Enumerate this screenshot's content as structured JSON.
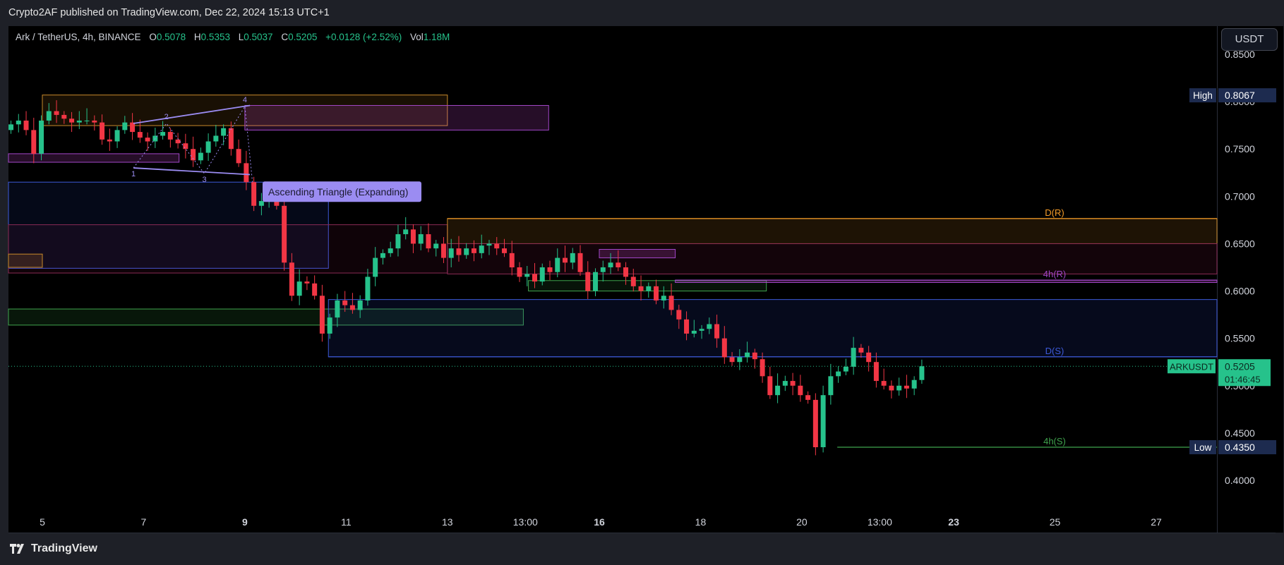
{
  "header": {
    "publish_text": "Crypto2AF published on TradingView.com, Dec 22, 2024 15:13 UTC+1"
  },
  "legend": {
    "symbol": "Ark / TetherUS, 4h, BINANCE",
    "o_label": "O",
    "o_value": "0.5078",
    "h_label": "H",
    "h_value": "0.5353",
    "l_label": "L",
    "l_value": "0.5037",
    "c_label": "C",
    "c_value": "0.5205",
    "change": "+0.0128 (+2.52%)",
    "vol_label": "Vol",
    "vol_value": "1.18M"
  },
  "currency_button": "USDT",
  "footer": {
    "brand": "TradingView"
  },
  "colors": {
    "bull": "#26c28b",
    "bear": "#f23645",
    "bg": "#000000",
    "panel": "#1e2027",
    "axis_text": "#d1d4dc"
  },
  "chart_data": {
    "type": "candlestick",
    "symbol": "ARKUSDT",
    "timeframe": "4h",
    "y_axis": {
      "ticks": [
        "0.8500",
        "0.8000",
        "0.7500",
        "0.7000",
        "0.6500",
        "0.6000",
        "0.5500",
        "0.5000",
        "0.4500",
        "0.4000"
      ],
      "range": [
        0.37,
        0.88
      ]
    },
    "x_axis": {
      "ticks": [
        {
          "label": "5",
          "day": 5,
          "bold": false
        },
        {
          "label": "7",
          "day": 7,
          "bold": false
        },
        {
          "label": "9",
          "day": 9,
          "bold": true
        },
        {
          "label": "11",
          "day": 11,
          "bold": false
        },
        {
          "label": "13",
          "day": 13,
          "bold": false
        },
        {
          "label": "13:00",
          "day": 14.54,
          "bold": false
        },
        {
          "label": "16",
          "day": 16,
          "bold": true
        },
        {
          "label": "18",
          "day": 18,
          "bold": false
        },
        {
          "label": "20",
          "day": 20,
          "bold": false
        },
        {
          "label": "13:00",
          "day": 21.54,
          "bold": false
        },
        {
          "label": "23",
          "day": 23,
          "bold": true
        },
        {
          "label": "25",
          "day": 25,
          "bold": false
        },
        {
          "label": "27",
          "day": 27,
          "bold": false
        }
      ],
      "range": [
        4.35,
        28.2
      ]
    },
    "high": {
      "label": "High",
      "value": "0.8067"
    },
    "low": {
      "label": "Low",
      "value": "0.4350"
    },
    "last_price": {
      "symbol": "ARKUSDT",
      "value": "0.5205",
      "countdown": "01:46:45",
      "numeric": 0.5205
    },
    "levels": [
      {
        "label": "D(R)",
        "price": 0.6765,
        "color": "#f59c28"
      },
      {
        "label": "4h(R)",
        "price": 0.6115,
        "color": "#a247c8"
      },
      {
        "label": "D(S)",
        "price": 0.5305,
        "color": "#3d5ad8"
      },
      {
        "label": "4h(S)",
        "price": 0.435,
        "color": "#3fa34d"
      }
    ],
    "pattern": {
      "label": "Ascending Triangle (Expanding)",
      "points": [
        "1",
        "2",
        "3",
        "4"
      ]
    },
    "zones": [
      {
        "x0": 5.0,
        "x1": 13.0,
        "y0": 0.7747,
        "y1": 0.807,
        "fill": "rgba(245,156,40,0.10)",
        "stroke": "#c98a2a"
      },
      {
        "x0": 9.0,
        "x1": 15.0,
        "y0": 0.77,
        "y1": 0.796,
        "fill": "rgba(190,70,200,0.20)",
        "stroke": "#a247c8"
      },
      {
        "x0": 4.35,
        "x1": 7.7,
        "y0": 0.736,
        "y1": 0.745,
        "fill": "rgba(190,70,200,0.20)",
        "stroke": "#a247c8"
      },
      {
        "x0": 4.35,
        "x1": 10.65,
        "y0": 0.624,
        "y1": 0.715,
        "fill": "rgba(40,70,200,0.12)",
        "stroke": "#3d5ad8"
      },
      {
        "x0": 4.35,
        "x1": 13.0,
        "y0": 0.619,
        "y1": 0.67,
        "fill": "rgba(190,40,100,0.08)",
        "stroke": "#8a2a55"
      },
      {
        "x0": 4.35,
        "x1": 5.0,
        "y0": 0.625,
        "y1": 0.639,
        "fill": "rgba(245,156,40,0.15)",
        "stroke": "#c98a2a"
      },
      {
        "x0": 4.35,
        "x1": 14.5,
        "y0": 0.564,
        "y1": 0.581,
        "fill": "rgba(60,160,70,0.14)",
        "stroke": "#3fa34d"
      },
      {
        "x0": 10.65,
        "x1": 28.2,
        "y0": 0.5305,
        "y1": 0.591,
        "fill": "rgba(40,70,200,0.14)",
        "stroke": "#3d5ad8"
      },
      {
        "x0": 13.0,
        "x1": 28.2,
        "y0": 0.65,
        "y1": 0.6765,
        "fill": "rgba(245,156,40,0.12)",
        "stroke": "#c98a2a"
      },
      {
        "x0": 13.0,
        "x1": 28.2,
        "y0": 0.618,
        "y1": 0.65,
        "fill": "rgba(190,40,100,0.10)",
        "stroke": "#8a2a55"
      },
      {
        "x0": 16.0,
        "x1": 17.5,
        "y0": 0.635,
        "y1": 0.644,
        "fill": "rgba(190,70,200,0.22)",
        "stroke": "#a247c8"
      },
      {
        "x0": 14.6,
        "x1": 19.3,
        "y0": 0.6,
        "y1": 0.611,
        "fill": "rgba(60,160,70,0.12)",
        "stroke": "#3fa34d"
      },
      {
        "x0": 17.5,
        "x1": 28.2,
        "y0": 0.609,
        "y1": 0.6115,
        "fill": "rgba(190,70,200,0.25)",
        "stroke": "#a247c8"
      }
    ]
  }
}
